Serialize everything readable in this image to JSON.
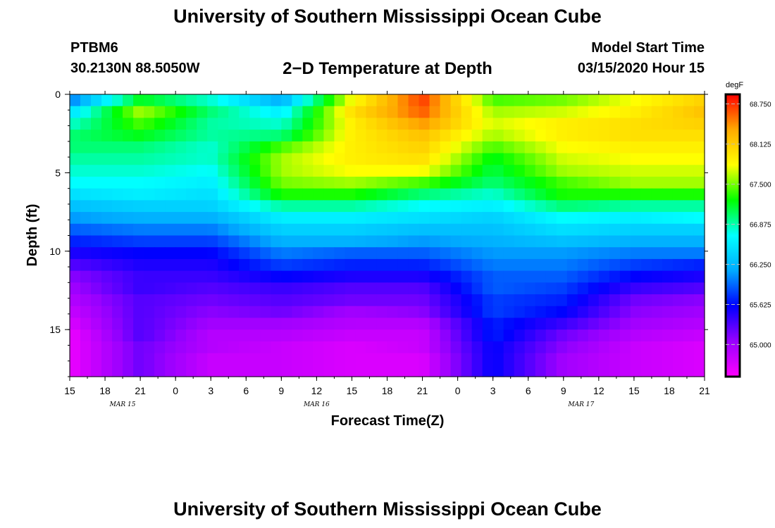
{
  "header": {
    "title": "University of Southern Mississippi Ocean Cube",
    "station_id": "PTBM6",
    "station_location": "30.2130N 88.5050W",
    "plot_title": "2−D Temperature at Depth",
    "model_label": "Model Start Time",
    "model_time": "03/15/2020 Hour 15"
  },
  "footer": {
    "title": "University of Southern Mississippi Ocean Cube"
  },
  "chart_data": {
    "type": "heatmap",
    "title": "2−D Temperature at Depth",
    "xlabel": "Forecast Time(Z)",
    "ylabel": "Depth (ft)",
    "x_hours_range": [
      0,
      54
    ],
    "ylim": [
      0,
      18
    ],
    "x_ticks": [
      {
        "hour": 0,
        "label": "15"
      },
      {
        "hour": 3,
        "label": "18"
      },
      {
        "hour": 6,
        "label": "21"
      },
      {
        "hour": 9,
        "label": "0"
      },
      {
        "hour": 12,
        "label": "3"
      },
      {
        "hour": 15,
        "label": "6"
      },
      {
        "hour": 18,
        "label": "9"
      },
      {
        "hour": 21,
        "label": "12"
      },
      {
        "hour": 24,
        "label": "15"
      },
      {
        "hour": 27,
        "label": "18"
      },
      {
        "hour": 30,
        "label": "21"
      },
      {
        "hour": 33,
        "label": "0"
      },
      {
        "hour": 36,
        "label": "3"
      },
      {
        "hour": 39,
        "label": "6"
      },
      {
        "hour": 42,
        "label": "9"
      },
      {
        "hour": 45,
        "label": "12"
      },
      {
        "hour": 48,
        "label": "15"
      },
      {
        "hour": 51,
        "label": "18"
      },
      {
        "hour": 54,
        "label": "21"
      }
    ],
    "date_labels": [
      {
        "hour": 4.5,
        "label": "MAR 15"
      },
      {
        "hour": 21,
        "label": "MAR 16"
      },
      {
        "hour": 43.5,
        "label": "MAR 17"
      }
    ],
    "y_ticks": [
      {
        "depth": 0,
        "label": "0"
      },
      {
        "depth": 5,
        "label": "5"
      },
      {
        "depth": 10,
        "label": "10"
      },
      {
        "depth": 15,
        "label": "15"
      }
    ],
    "colorbar": {
      "unit": "degF",
      "min": 64.5,
      "max": 68.9,
      "ticks": [
        {
          "value": 68.75,
          "label": "68.750"
        },
        {
          "value": 68.125,
          "label": "68.125"
        },
        {
          "value": 67.5,
          "label": "67.500"
        },
        {
          "value": 66.875,
          "label": "66.875"
        },
        {
          "value": 66.25,
          "label": "66.250"
        },
        {
          "value": 65.625,
          "label": "65.625"
        },
        {
          "value": 65.0,
          "label": "65.000"
        }
      ],
      "colors": [
        "#ff00ff",
        "#9900ff",
        "#0000ff",
        "#00aaff",
        "#00ffff",
        "#00ff00",
        "#ffff00",
        "#ffaa00",
        "#ff0000"
      ]
    },
    "depth_levels": [
      0,
      0.75,
      1.5,
      2.25,
      3,
      3.75,
      4.5,
      5.25,
      6,
      6.75,
      7.5,
      8.25,
      9,
      9.75,
      10.5,
      11.25,
      12,
      12.75,
      13.5,
      14.25,
      15,
      15.75,
      16.5,
      17.25
    ],
    "time_hours": [
      0,
      6,
      12,
      18,
      24,
      30,
      36,
      42,
      48,
      54
    ],
    "temperature_degF": [
      [
        66.0,
        67.2,
        66.8,
        66.2,
        67.8,
        68.7,
        67.4,
        67.5,
        67.8,
        68.1
      ],
      [
        66.5,
        67.6,
        67.0,
        66.6,
        68.0,
        68.6,
        67.6,
        67.7,
        67.9,
        68.2
      ],
      [
        66.8,
        67.4,
        66.9,
        66.8,
        67.9,
        68.4,
        67.7,
        67.9,
        68.0,
        68.1
      ],
      [
        67.0,
        67.2,
        66.9,
        67.0,
        67.9,
        68.2,
        67.6,
        67.9,
        68.0,
        68.0
      ],
      [
        67.0,
        67.0,
        66.8,
        67.4,
        67.9,
        68.1,
        67.4,
        67.8,
        67.9,
        67.9
      ],
      [
        66.9,
        66.9,
        66.8,
        67.6,
        67.9,
        68.0,
        67.2,
        67.7,
        67.8,
        67.8
      ],
      [
        66.8,
        66.8,
        66.7,
        67.6,
        67.8,
        67.8,
        67.1,
        67.6,
        67.7,
        67.7
      ],
      [
        66.7,
        66.7,
        66.6,
        67.5,
        67.6,
        67.4,
        67.0,
        67.4,
        67.6,
        67.6
      ],
      [
        66.5,
        66.6,
        66.5,
        67.3,
        67.3,
        67.0,
        66.8,
        67.3,
        67.3,
        67.3
      ],
      [
        66.3,
        66.4,
        66.4,
        66.9,
        66.9,
        66.7,
        66.6,
        67.0,
        66.9,
        66.9
      ],
      [
        66.1,
        66.2,
        66.2,
        66.6,
        66.6,
        66.5,
        66.4,
        66.7,
        66.6,
        66.7
      ],
      [
        65.9,
        66.0,
        66.0,
        66.4,
        66.4,
        66.3,
        66.3,
        66.5,
        66.4,
        66.4
      ],
      [
        65.7,
        65.8,
        65.8,
        66.2,
        66.2,
        66.1,
        66.2,
        66.3,
        66.2,
        66.2
      ],
      [
        65.5,
        65.6,
        65.6,
        66.0,
        65.9,
        65.9,
        66.1,
        66.1,
        66.0,
        66.0
      ],
      [
        65.3,
        65.5,
        65.5,
        65.8,
        65.7,
        65.7,
        66.0,
        66.0,
        65.8,
        65.7
      ],
      [
        65.1,
        65.4,
        65.4,
        65.6,
        65.5,
        65.5,
        65.9,
        65.9,
        65.6,
        65.5
      ],
      [
        65.0,
        65.4,
        65.3,
        65.4,
        65.3,
        65.3,
        65.9,
        65.8,
        65.4,
        65.3
      ],
      [
        64.9,
        65.3,
        65.2,
        65.3,
        65.2,
        65.2,
        65.8,
        65.7,
        65.2,
        65.1
      ],
      [
        64.8,
        65.3,
        65.1,
        65.2,
        65.0,
        65.1,
        65.8,
        65.6,
        65.1,
        65.0
      ],
      [
        64.7,
        65.3,
        65.0,
        65.0,
        64.9,
        64.9,
        65.7,
        65.4,
        65.0,
        64.9
      ],
      [
        64.6,
        65.3,
        64.9,
        64.9,
        64.8,
        64.8,
        65.7,
        65.2,
        64.9,
        64.8
      ],
      [
        64.6,
        65.2,
        64.9,
        64.8,
        64.7,
        64.8,
        65.6,
        65.1,
        64.8,
        64.7
      ],
      [
        64.6,
        65.2,
        64.8,
        64.8,
        64.7,
        64.7,
        65.6,
        65.0,
        64.8,
        64.7
      ],
      [
        64.6,
        65.2,
        64.8,
        64.8,
        64.7,
        64.7,
        65.6,
        65.0,
        64.8,
        64.7
      ]
    ]
  }
}
